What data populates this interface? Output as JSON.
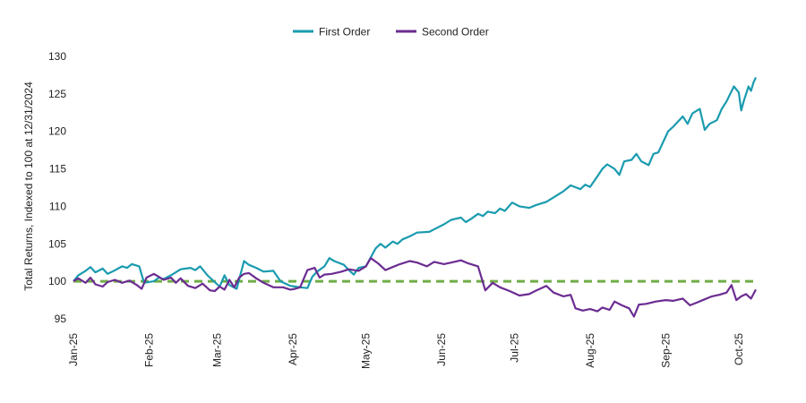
{
  "chart_data": {
    "type": "line",
    "title": "",
    "xlabel": "",
    "ylabel": "Total Returns, Indexed to 100 at 12/31/2024",
    "ylim": [
      95,
      130
    ],
    "yticks": [
      95,
      100,
      105,
      110,
      115,
      120,
      125,
      130
    ],
    "x_domain": [
      "2025-01-01",
      "2025-10-08"
    ],
    "xticks": [
      {
        "date": "2025-01-01",
        "label": "Jan-25"
      },
      {
        "date": "2025-02-01",
        "label": "Feb-25"
      },
      {
        "date": "2025-03-01",
        "label": "Mar-25"
      },
      {
        "date": "2025-04-01",
        "label": "Apr-25"
      },
      {
        "date": "2025-05-01",
        "label": "May-25"
      },
      {
        "date": "2025-06-01",
        "label": "Jun-25"
      },
      {
        "date": "2025-07-01",
        "label": "Jul-25"
      },
      {
        "date": "2025-08-01",
        "label": "Aug-25"
      },
      {
        "date": "2025-09-01",
        "label": "Sep-25"
      },
      {
        "date": "2025-10-01",
        "label": "Oct-25"
      }
    ],
    "grid": false,
    "legend_position": "top-center",
    "reference_line": {
      "y": 100,
      "color": "#70AD47",
      "style": "dashed"
    },
    "series": [
      {
        "name": "First Order",
        "color": "#1A9BAF",
        "points": [
          [
            "2025-01-01",
            100.0
          ],
          [
            "2025-01-03",
            100.8
          ],
          [
            "2025-01-06",
            101.4
          ],
          [
            "2025-01-08",
            101.9
          ],
          [
            "2025-01-10",
            101.2
          ],
          [
            "2025-01-13",
            101.7
          ],
          [
            "2025-01-15",
            101.0
          ],
          [
            "2025-01-17",
            101.3
          ],
          [
            "2025-01-21",
            102.0
          ],
          [
            "2025-01-23",
            101.8
          ],
          [
            "2025-01-25",
            102.3
          ],
          [
            "2025-01-28",
            102.0
          ],
          [
            "2025-01-30",
            99.8
          ],
          [
            "2025-02-03",
            100.0
          ],
          [
            "2025-02-05",
            100.5
          ],
          [
            "2025-02-07",
            100.3
          ],
          [
            "2025-02-10",
            100.8
          ],
          [
            "2025-02-12",
            101.2
          ],
          [
            "2025-02-14",
            101.6
          ],
          [
            "2025-02-18",
            101.8
          ],
          [
            "2025-02-20",
            101.5
          ],
          [
            "2025-02-22",
            102.0
          ],
          [
            "2025-02-25",
            100.8
          ],
          [
            "2025-02-27",
            100.2
          ],
          [
            "2025-03-02",
            99.3
          ],
          [
            "2025-03-04",
            100.8
          ],
          [
            "2025-03-06",
            99.5
          ],
          [
            "2025-03-09",
            99.0
          ],
          [
            "2025-03-12",
            102.7
          ],
          [
            "2025-03-14",
            102.2
          ],
          [
            "2025-03-17",
            101.8
          ],
          [
            "2025-03-20",
            101.3
          ],
          [
            "2025-03-24",
            101.4
          ],
          [
            "2025-03-27",
            100.0
          ],
          [
            "2025-03-31",
            99.4
          ],
          [
            "2025-04-02",
            99.3
          ],
          [
            "2025-04-04",
            99.2
          ],
          [
            "2025-04-07",
            99.1
          ],
          [
            "2025-04-09",
            100.6
          ],
          [
            "2025-04-11",
            101.3
          ],
          [
            "2025-04-14",
            102.0
          ],
          [
            "2025-04-16",
            103.1
          ],
          [
            "2025-04-18",
            102.7
          ],
          [
            "2025-04-22",
            102.2
          ],
          [
            "2025-04-24",
            101.5
          ],
          [
            "2025-04-26",
            100.9
          ],
          [
            "2025-04-28",
            101.8
          ],
          [
            "2025-05-01",
            102.0
          ],
          [
            "2025-05-05",
            104.4
          ],
          [
            "2025-05-07",
            105.0
          ],
          [
            "2025-05-09",
            104.5
          ],
          [
            "2025-05-12",
            105.3
          ],
          [
            "2025-05-14",
            105.0
          ],
          [
            "2025-05-16",
            105.6
          ],
          [
            "2025-05-19",
            106.0
          ],
          [
            "2025-05-22",
            106.5
          ],
          [
            "2025-05-27",
            106.6
          ],
          [
            "2025-05-30",
            107.1
          ],
          [
            "2025-06-02",
            107.6
          ],
          [
            "2025-06-05",
            108.2
          ],
          [
            "2025-06-09",
            108.5
          ],
          [
            "2025-06-11",
            107.9
          ],
          [
            "2025-06-13",
            108.3
          ],
          [
            "2025-06-16",
            109.0
          ],
          [
            "2025-06-18",
            108.7
          ],
          [
            "2025-06-20",
            109.3
          ],
          [
            "2025-06-23",
            109.1
          ],
          [
            "2025-06-25",
            109.7
          ],
          [
            "2025-06-27",
            109.4
          ],
          [
            "2025-06-30",
            110.5
          ],
          [
            "2025-07-03",
            110.0
          ],
          [
            "2025-07-07",
            109.8
          ],
          [
            "2025-07-10",
            110.2
          ],
          [
            "2025-07-14",
            110.6
          ],
          [
            "2025-07-17",
            111.2
          ],
          [
            "2025-07-21",
            112.0
          ],
          [
            "2025-07-24",
            112.8
          ],
          [
            "2025-07-28",
            112.3
          ],
          [
            "2025-07-30",
            112.9
          ],
          [
            "2025-08-01",
            112.6
          ],
          [
            "2025-08-04",
            114.0
          ],
          [
            "2025-08-06",
            115.0
          ],
          [
            "2025-08-08",
            115.6
          ],
          [
            "2025-08-11",
            115.0
          ],
          [
            "2025-08-13",
            114.2
          ],
          [
            "2025-08-15",
            116.0
          ],
          [
            "2025-08-18",
            116.2
          ],
          [
            "2025-08-20",
            117.0
          ],
          [
            "2025-08-22",
            116.0
          ],
          [
            "2025-08-25",
            115.5
          ],
          [
            "2025-08-27",
            117.0
          ],
          [
            "2025-08-29",
            117.2
          ],
          [
            "2025-09-02",
            120.0
          ],
          [
            "2025-09-04",
            120.6
          ],
          [
            "2025-09-08",
            122.0
          ],
          [
            "2025-09-10",
            121.0
          ],
          [
            "2025-09-12",
            122.4
          ],
          [
            "2025-09-15",
            123.0
          ],
          [
            "2025-09-17",
            120.2
          ],
          [
            "2025-09-19",
            121.0
          ],
          [
            "2025-09-22",
            121.5
          ],
          [
            "2025-09-24",
            123.0
          ],
          [
            "2025-09-26",
            124.0
          ],
          [
            "2025-09-29",
            126.0
          ],
          [
            "2025-10-01",
            125.2
          ],
          [
            "2025-10-02",
            122.8
          ],
          [
            "2025-10-03",
            124.0
          ],
          [
            "2025-10-05",
            126.0
          ],
          [
            "2025-10-06",
            125.4
          ],
          [
            "2025-10-07",
            126.5
          ],
          [
            "2025-10-08",
            127.2
          ]
        ]
      },
      {
        "name": "Second Order",
        "color": "#6B2C91",
        "points": [
          [
            "2025-01-01",
            100.0
          ],
          [
            "2025-01-03",
            100.4
          ],
          [
            "2025-01-06",
            99.8
          ],
          [
            "2025-01-08",
            100.5
          ],
          [
            "2025-01-10",
            99.6
          ],
          [
            "2025-01-13",
            99.3
          ],
          [
            "2025-01-15",
            99.9
          ],
          [
            "2025-01-18",
            100.2
          ],
          [
            "2025-01-21",
            99.8
          ],
          [
            "2025-01-24",
            100.1
          ],
          [
            "2025-01-27",
            99.5
          ],
          [
            "2025-01-29",
            99.0
          ],
          [
            "2025-01-31",
            100.5
          ],
          [
            "2025-02-03",
            101.0
          ],
          [
            "2025-02-05",
            100.6
          ],
          [
            "2025-02-07",
            100.2
          ],
          [
            "2025-02-10",
            100.5
          ],
          [
            "2025-02-12",
            99.8
          ],
          [
            "2025-02-14",
            100.4
          ],
          [
            "2025-02-17",
            99.4
          ],
          [
            "2025-02-20",
            99.1
          ],
          [
            "2025-02-23",
            99.7
          ],
          [
            "2025-02-26",
            98.8
          ],
          [
            "2025-02-28",
            98.7
          ],
          [
            "2025-03-02",
            99.3
          ],
          [
            "2025-03-04",
            98.9
          ],
          [
            "2025-03-06",
            100.2
          ],
          [
            "2025-03-08",
            99.2
          ],
          [
            "2025-03-10",
            100.5
          ],
          [
            "2025-03-12",
            101.0
          ],
          [
            "2025-03-14",
            101.1
          ],
          [
            "2025-03-17",
            100.4
          ],
          [
            "2025-03-20",
            99.8
          ],
          [
            "2025-03-24",
            99.2
          ],
          [
            "2025-03-28",
            99.2
          ],
          [
            "2025-03-31",
            98.9
          ],
          [
            "2025-04-02",
            99.0
          ],
          [
            "2025-04-04",
            99.2
          ],
          [
            "2025-04-07",
            101.5
          ],
          [
            "2025-04-10",
            101.8
          ],
          [
            "2025-04-12",
            100.5
          ],
          [
            "2025-04-14",
            100.9
          ],
          [
            "2025-04-17",
            101.0
          ],
          [
            "2025-04-21",
            101.3
          ],
          [
            "2025-04-24",
            101.6
          ],
          [
            "2025-04-28",
            101.4
          ],
          [
            "2025-05-01",
            102.0
          ],
          [
            "2025-05-03",
            103.1
          ],
          [
            "2025-05-06",
            102.4
          ],
          [
            "2025-05-09",
            101.5
          ],
          [
            "2025-05-12",
            101.9
          ],
          [
            "2025-05-15",
            102.3
          ],
          [
            "2025-05-19",
            102.7
          ],
          [
            "2025-05-22",
            102.5
          ],
          [
            "2025-05-26",
            102.0
          ],
          [
            "2025-05-29",
            102.6
          ],
          [
            "2025-06-02",
            102.3
          ],
          [
            "2025-06-05",
            102.5
          ],
          [
            "2025-06-09",
            102.8
          ],
          [
            "2025-06-12",
            102.4
          ],
          [
            "2025-06-16",
            102.0
          ],
          [
            "2025-06-19",
            98.8
          ],
          [
            "2025-06-22",
            99.8
          ],
          [
            "2025-06-25",
            99.2
          ],
          [
            "2025-06-29",
            98.7
          ],
          [
            "2025-07-03",
            98.1
          ],
          [
            "2025-07-07",
            98.3
          ],
          [
            "2025-07-10",
            98.8
          ],
          [
            "2025-07-14",
            99.4
          ],
          [
            "2025-07-17",
            98.5
          ],
          [
            "2025-07-21",
            98.0
          ],
          [
            "2025-07-24",
            98.2
          ],
          [
            "2025-07-26",
            96.4
          ],
          [
            "2025-07-29",
            96.1
          ],
          [
            "2025-08-01",
            96.3
          ],
          [
            "2025-08-04",
            96.0
          ],
          [
            "2025-08-06",
            96.5
          ],
          [
            "2025-08-09",
            96.2
          ],
          [
            "2025-08-11",
            97.3
          ],
          [
            "2025-08-14",
            96.8
          ],
          [
            "2025-08-17",
            96.4
          ],
          [
            "2025-08-19",
            95.3
          ],
          [
            "2025-08-21",
            96.9
          ],
          [
            "2025-08-24",
            97.0
          ],
          [
            "2025-08-28",
            97.3
          ],
          [
            "2025-09-01",
            97.5
          ],
          [
            "2025-09-04",
            97.4
          ],
          [
            "2025-09-08",
            97.7
          ],
          [
            "2025-09-11",
            96.8
          ],
          [
            "2025-09-14",
            97.2
          ],
          [
            "2025-09-17",
            97.6
          ],
          [
            "2025-09-20",
            98.0
          ],
          [
            "2025-09-23",
            98.2
          ],
          [
            "2025-09-26",
            98.5
          ],
          [
            "2025-09-28",
            99.5
          ],
          [
            "2025-09-30",
            97.5
          ],
          [
            "2025-10-02",
            98.0
          ],
          [
            "2025-10-04",
            98.3
          ],
          [
            "2025-10-06",
            97.7
          ],
          [
            "2025-10-08",
            98.9
          ]
        ]
      }
    ]
  }
}
